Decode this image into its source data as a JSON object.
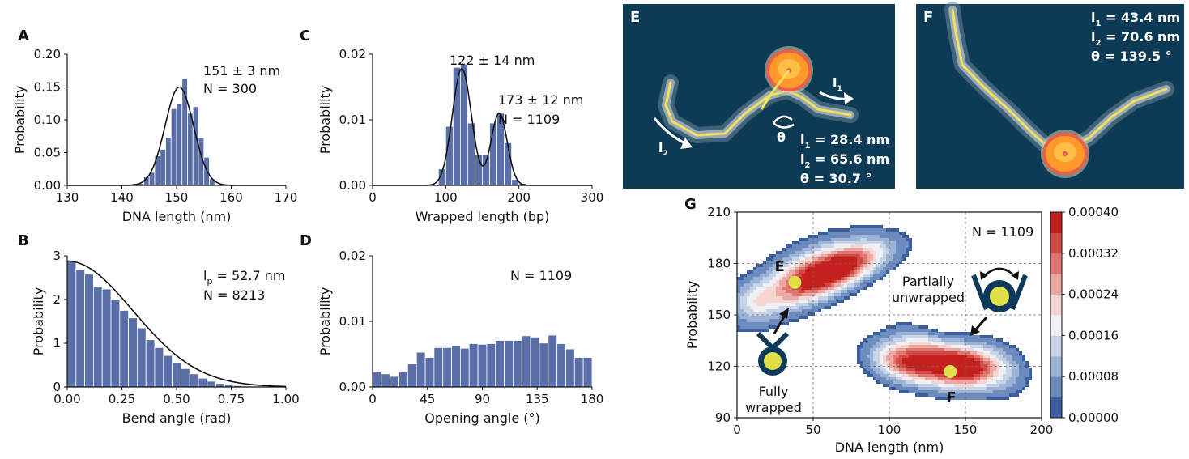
{
  "colors": {
    "bar": "#5a6fa8",
    "fit": "#111111",
    "micrograph_bg": "#0d3a55",
    "dna_trace": "#f5e05a",
    "nucleosome": "#ff9a2a",
    "fit_ellipse": "#e8604a",
    "icon": "#0e3a5a",
    "icon_core": "#e3df4a",
    "marker": "#e3df4a"
  },
  "chart_data": [
    {
      "id": "A",
      "type": "bar",
      "letter": "A",
      "xlabel": "DNA length (nm)",
      "ylabel": "Probability",
      "xlim": [
        130,
        170
      ],
      "ylim": [
        0,
        0.2
      ],
      "xticks": [
        "130",
        "140",
        "150",
        "160",
        "170"
      ],
      "yticks": [
        "0.00",
        "0.05",
        "0.10",
        "0.15",
        "0.20"
      ],
      "bin_edges": [
        142,
        143,
        144,
        145,
        146,
        147,
        148,
        149,
        150,
        151,
        152,
        153,
        154,
        155,
        156,
        157
      ],
      "values": [
        0.003,
        0.003,
        0.013,
        0.02,
        0.045,
        0.055,
        0.073,
        0.117,
        0.125,
        0.163,
        0.11,
        0.12,
        0.073,
        0.043,
        0.01
      ],
      "fit": {
        "kind": "gauss",
        "amps": [
          0.15
        ],
        "mus": [
          150.5
        ],
        "sigmas": [
          2.6
        ]
      },
      "annotations": [
        "151 ± 3 nm",
        "N = 300"
      ]
    },
    {
      "id": "B",
      "type": "bar",
      "letter": "B",
      "xlabel": "Bend angle (rad)",
      "ylabel": "Probability",
      "xlim": [
        0,
        1
      ],
      "ylim": [
        0,
        3
      ],
      "xticks": [
        "0.00",
        "0.25",
        "0.50",
        "0.75",
        "1.00"
      ],
      "yticks": [
        "0",
        "1",
        "2",
        "3"
      ],
      "bin_edges": [
        0,
        0.04,
        0.08,
        0.12,
        0.16,
        0.2,
        0.24,
        0.28,
        0.32,
        0.36,
        0.4,
        0.44,
        0.48,
        0.52,
        0.56,
        0.6,
        0.64,
        0.68,
        0.72,
        0.76,
        0.8,
        0.84,
        0.88,
        0.92,
        0.96,
        1.0
      ],
      "values": [
        2.88,
        2.68,
        2.58,
        2.3,
        2.24,
        2.0,
        1.75,
        1.58,
        1.35,
        1.08,
        0.9,
        0.72,
        0.56,
        0.42,
        0.3,
        0.2,
        0.13,
        0.08,
        0.05,
        0.03,
        0.02,
        0.01,
        0.01,
        0.0,
        0.0
      ],
      "fit": {
        "kind": "halfgauss",
        "amps": [
          2.88
        ],
        "mus": [
          0
        ],
        "sigmas": [
          0.3
        ]
      },
      "annotations": [
        "l",
        "p",
        " = 52.7 nm",
        "N = 8213"
      ]
    },
    {
      "id": "C",
      "type": "bar",
      "letter": "C",
      "xlabel": "Wrapped length (bp)",
      "ylabel": "Probability",
      "xlim": [
        0,
        300
      ],
      "ylim": [
        0,
        0.02
      ],
      "xticks": [
        "0",
        "100",
        "200",
        "300"
      ],
      "yticks": [
        "0.00",
        "0.01",
        "0.02"
      ],
      "bin_edges": [
        80,
        90,
        100,
        110,
        120,
        130,
        140,
        150,
        160,
        170,
        180,
        190,
        200,
        210,
        220,
        230,
        240
      ],
      "values": [
        0.0002,
        0.0025,
        0.009,
        0.018,
        0.0185,
        0.0095,
        0.0047,
        0.0047,
        0.0095,
        0.011,
        0.0065,
        0.0009,
        0.0003,
        0.0001,
        0.0001,
        0.0001
      ],
      "fit": {
        "kind": "gauss",
        "amps": [
          0.0178,
          0.011
        ],
        "mus": [
          122,
          173
        ],
        "sigmas": [
          13,
          11
        ]
      },
      "annotations": [
        "122 ± 14 nm",
        "173 ± 12 nm",
        "N = 1109"
      ]
    },
    {
      "id": "D",
      "type": "bar",
      "letter": "D",
      "xlabel": "Opening angle (°)",
      "ylabel": "Probability",
      "xlim": [
        0,
        180
      ],
      "ylim": [
        0,
        0.02
      ],
      "xticks": [
        "0",
        "45",
        "90",
        "135",
        "180"
      ],
      "yticks": [
        "0.00",
        "0.01",
        "0.02"
      ],
      "bin_edges": [
        0,
        7.2,
        14.4,
        21.6,
        28.8,
        36,
        43.2,
        50.4,
        57.6,
        64.8,
        72,
        79.2,
        86.4,
        93.6,
        100.8,
        108,
        115.2,
        122.4,
        129.6,
        136.8,
        144,
        151.2,
        158.4,
        165.6,
        172.8,
        180
      ],
      "values": [
        0.0023,
        0.002,
        0.0016,
        0.0023,
        0.0035,
        0.0053,
        0.0045,
        0.006,
        0.006,
        0.0063,
        0.0059,
        0.0066,
        0.0065,
        0.0066,
        0.0071,
        0.0071,
        0.0071,
        0.0078,
        0.0076,
        0.0067,
        0.0079,
        0.0066,
        0.0058,
        0.0045,
        0.0045
      ],
      "annotations": [
        "N = 1109"
      ]
    },
    {
      "id": "G",
      "type": "heatmap",
      "letter": "G",
      "xlabel": "DNA length (nm)",
      "ylabel": "Probability",
      "xlim": [
        0,
        200
      ],
      "ylim": [
        90,
        210
      ],
      "xticks": [
        "0",
        "50",
        "100",
        "150",
        "200"
      ],
      "yticks": [
        "90",
        "120",
        "150",
        "180",
        "210"
      ],
      "grid": true,
      "colorbar": {
        "range": [
          0,
          0.0004
        ],
        "ticks": [
          "0.00000",
          "0.00008",
          "0.00016",
          "0.00024",
          "0.00032",
          "0.00040"
        ],
        "colors": [
          "#3b5ea0",
          "#6c8cc0",
          "#9cb2d6",
          "#c7d3e6",
          "#eef0f5",
          "#f6d6d2",
          "#eea8a2",
          "#e07670",
          "#d04a44",
          "#c4211e"
        ]
      },
      "blobs": [
        {
          "x": 38,
          "y": 170,
          "sx": 24,
          "sy": 10,
          "rot": 28,
          "amp": 0.00022
        },
        {
          "x": 62,
          "y": 175,
          "sx": 20,
          "sy": 8,
          "rot": 24,
          "amp": 0.00027
        },
        {
          "x": 78,
          "y": 180,
          "sx": 20,
          "sy": 7,
          "rot": 20,
          "amp": 0.00016
        },
        {
          "x": 10,
          "y": 158,
          "sx": 9,
          "sy": 8,
          "rot": 0,
          "amp": 9e-05
        },
        {
          "x": 108,
          "y": 123,
          "sx": 14,
          "sy": 8,
          "rot": -12,
          "amp": 0.00027
        },
        {
          "x": 130,
          "y": 120,
          "sx": 15,
          "sy": 8,
          "rot": -14,
          "amp": 0.00026
        },
        {
          "x": 150,
          "y": 120,
          "sx": 12,
          "sy": 8,
          "rot": -10,
          "amp": 0.00033
        },
        {
          "x": 170,
          "y": 119,
          "sx": 13,
          "sy": 9,
          "rot": -18,
          "amp": 0.00015
        },
        {
          "x": 125,
          "y": 133,
          "sx": 14,
          "sy": 5,
          "rot": -22,
          "amp": 9e-05
        }
      ],
      "markers": [
        {
          "label": "E",
          "x": 38,
          "y": 169
        },
        {
          "label": "F",
          "x": 140,
          "y": 117
        }
      ],
      "annotations": {
        "n": "N = 1109",
        "partial": [
          "Partially",
          "unwrapped"
        ],
        "full": [
          "Fully",
          "wrapped"
        ]
      }
    }
  ],
  "micrographs": [
    {
      "id": "E",
      "letter": "E",
      "labels": [
        "l",
        "1",
        "l",
        "2",
        "θ"
      ],
      "stats": [
        {
          "sym": "l",
          "sub": "1",
          "text": " = 28.4 nm"
        },
        {
          "sym": "l",
          "sub": "2",
          "text": " = 65.6 nm"
        },
        {
          "sym": "θ",
          "sub": "",
          "text": " = 30.7 °"
        }
      ]
    },
    {
      "id": "F",
      "letter": "F",
      "stats": [
        {
          "sym": "l",
          "sub": "1",
          "text": " = 43.4 nm"
        },
        {
          "sym": "l",
          "sub": "2",
          "text": " = 70.6 nm"
        },
        {
          "sym": "θ",
          "sub": "",
          "text": " = 139.5 °"
        }
      ]
    }
  ]
}
